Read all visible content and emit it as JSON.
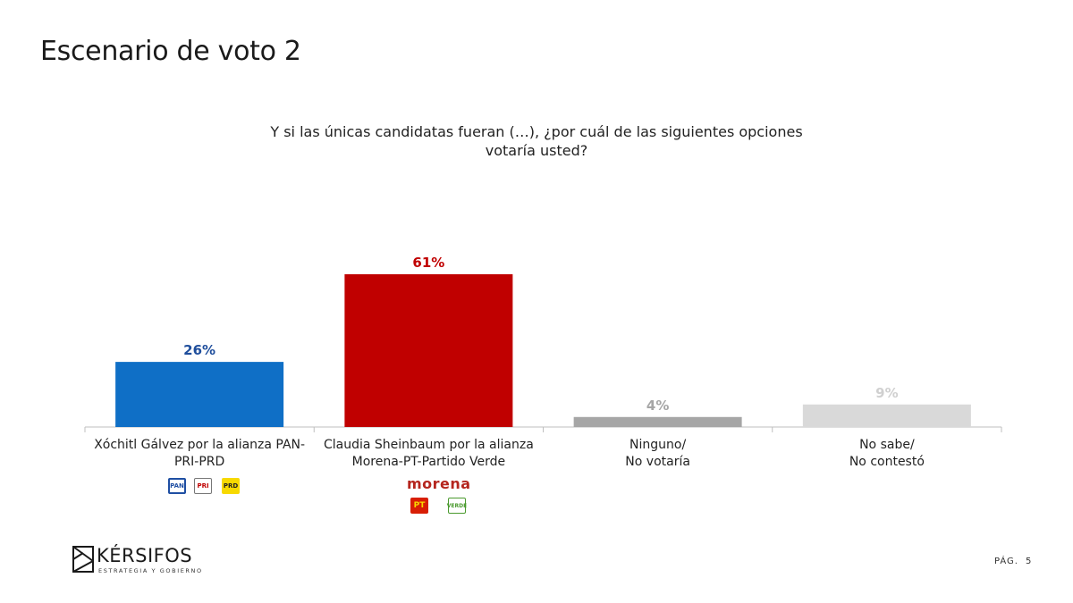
{
  "slide": {
    "title": "Escenario de voto 2",
    "question": "Y si las únicas candidatas fueran (…), ¿por cuál de las siguientes opciones votaría usted?",
    "brand_name": "KÉRSIFOS",
    "brand_tagline": "ESTRATEGIA Y GOBIERNO",
    "page_label": "PÁG.",
    "page_number": "5"
  },
  "logos": {
    "xochitl": [
      "PAN",
      "PRI",
      "PRD"
    ],
    "claudia_word": "morena",
    "claudia": [
      "PT",
      "VERDE"
    ]
  },
  "chart_data": {
    "type": "bar",
    "title": "",
    "xlabel": "",
    "ylabel": "",
    "ylim": [
      0,
      70
    ],
    "grid": false,
    "categories": [
      "Xóchitl Gálvez por la alianza PAN-\nPRI-PRD",
      "Claudia Sheinbaum por la alianza\nMorena-PT-Partido Verde",
      "Ninguno/\nNo votaría",
      "No sabe/\nNo contestó"
    ],
    "values": [
      26,
      61,
      4,
      9
    ],
    "data_labels": [
      "26%",
      "61%",
      "4%",
      "9%"
    ],
    "colors": [
      "#0f6fc6",
      "#c00000",
      "#a6a6a6",
      "#d9d9d9"
    ],
    "label_colors": [
      "#1f4e9c",
      "#c00000",
      "#a6a6a6",
      "#d0d0d0"
    ]
  }
}
